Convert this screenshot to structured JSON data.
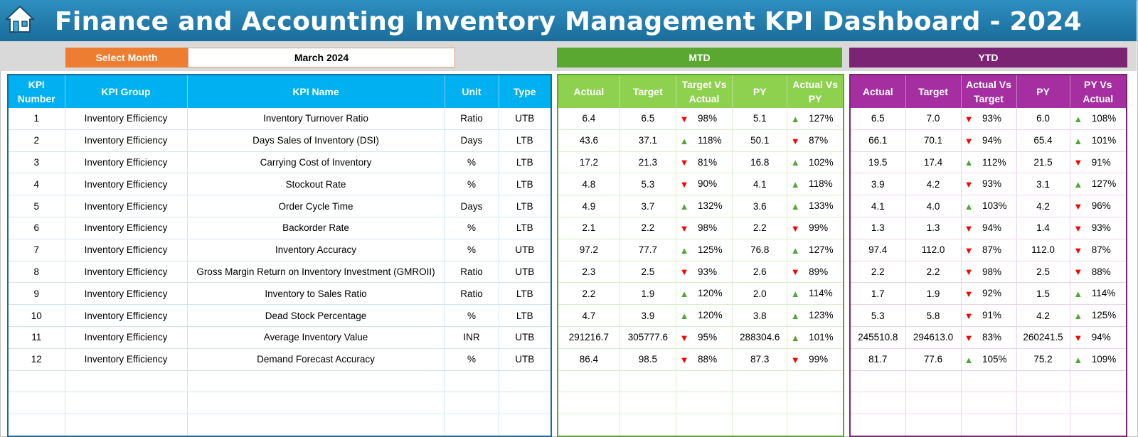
{
  "title": "Finance and Accounting Inventory Management KPI Dashboard - 2024",
  "selector": {
    "label": "Select Month",
    "value": "March 2024"
  },
  "sections": {
    "mtd": "MTD",
    "ytd": "YTD"
  },
  "main_headers": [
    "KPI Number",
    "KPI Group",
    "KPI Name",
    "Unit",
    "Type"
  ],
  "mtd_headers": [
    "Actual",
    "Target",
    "Target Vs Actual",
    "PY",
    "Actual Vs PY"
  ],
  "ytd_headers": [
    "Actual",
    "Target",
    "Actual Vs Target",
    "PY",
    "PY Vs Actual"
  ],
  "colors": {
    "up": "#52a539",
    "down": "#ff0000",
    "mtd": "#5aa832",
    "ytd": "#7b2473",
    "header": "#00b0f0"
  },
  "rows": [
    {
      "num": "1",
      "group": "Inventory Efficiency",
      "name": "Inventory Turnover Ratio",
      "unit": "Ratio",
      "type": "UTB",
      "mtd": {
        "actual": "6.4",
        "target": "6.5",
        "tva": "98%",
        "tva_dir": "down",
        "py": "5.1",
        "avp": "127%",
        "avp_dir": "up"
      },
      "ytd": {
        "actual": "6.5",
        "target": "7.0",
        "avt": "93%",
        "avt_dir": "down",
        "py": "6.0",
        "pva": "108%",
        "pva_dir": "up"
      }
    },
    {
      "num": "2",
      "group": "Inventory Efficiency",
      "name": "Days Sales of Inventory (DSI)",
      "unit": "Days",
      "type": "LTB",
      "mtd": {
        "actual": "43.6",
        "target": "37.1",
        "tva": "118%",
        "tva_dir": "up",
        "py": "50.1",
        "avp": "87%",
        "avp_dir": "down"
      },
      "ytd": {
        "actual": "66.1",
        "target": "70.1",
        "avt": "94%",
        "avt_dir": "down",
        "py": "65.4",
        "pva": "101%",
        "pva_dir": "up"
      }
    },
    {
      "num": "3",
      "group": "Inventory Efficiency",
      "name": "Carrying Cost of Inventory",
      "unit": "%",
      "type": "LTB",
      "mtd": {
        "actual": "17.2",
        "target": "21.3",
        "tva": "81%",
        "tva_dir": "down",
        "py": "16.8",
        "avp": "102%",
        "avp_dir": "up"
      },
      "ytd": {
        "actual": "19.5",
        "target": "17.4",
        "avt": "112%",
        "avt_dir": "up",
        "py": "21.5",
        "pva": "91%",
        "pva_dir": "down"
      }
    },
    {
      "num": "4",
      "group": "Inventory Efficiency",
      "name": "Stockout Rate",
      "unit": "%",
      "type": "LTB",
      "mtd": {
        "actual": "4.8",
        "target": "5.3",
        "tva": "90%",
        "tva_dir": "down",
        "py": "4.1",
        "avp": "118%",
        "avp_dir": "up"
      },
      "ytd": {
        "actual": "3.9",
        "target": "4.2",
        "avt": "93%",
        "avt_dir": "down",
        "py": "3.1",
        "pva": "127%",
        "pva_dir": "up"
      }
    },
    {
      "num": "5",
      "group": "Inventory Efficiency",
      "name": "Order Cycle Time",
      "unit": "Days",
      "type": "LTB",
      "mtd": {
        "actual": "4.9",
        "target": "3.7",
        "tva": "132%",
        "tva_dir": "up",
        "py": "3.6",
        "avp": "133%",
        "avp_dir": "up"
      },
      "ytd": {
        "actual": "4.1",
        "target": "4.0",
        "avt": "103%",
        "avt_dir": "up",
        "py": "4.2",
        "pva": "96%",
        "pva_dir": "down"
      }
    },
    {
      "num": "6",
      "group": "Inventory Efficiency",
      "name": "Backorder Rate",
      "unit": "%",
      "type": "LTB",
      "mtd": {
        "actual": "2.1",
        "target": "2.2",
        "tva": "98%",
        "tva_dir": "down",
        "py": "2.2",
        "avp": "99%",
        "avp_dir": "down"
      },
      "ytd": {
        "actual": "1.3",
        "target": "1.3",
        "avt": "94%",
        "avt_dir": "down",
        "py": "1.4",
        "pva": "93%",
        "pva_dir": "down"
      }
    },
    {
      "num": "7",
      "group": "Inventory Efficiency",
      "name": "Inventory Accuracy",
      "unit": "%",
      "type": "UTB",
      "mtd": {
        "actual": "97.2",
        "target": "77.7",
        "tva": "125%",
        "tva_dir": "up",
        "py": "76.8",
        "avp": "127%",
        "avp_dir": "up"
      },
      "ytd": {
        "actual": "97.4",
        "target": "112.0",
        "avt": "87%",
        "avt_dir": "down",
        "py": "112.0",
        "pva": "87%",
        "pva_dir": "down"
      }
    },
    {
      "num": "8",
      "group": "Inventory Efficiency",
      "name": "Gross Margin Return on Inventory Investment (GMROII)",
      "unit": "Ratio",
      "type": "UTB",
      "mtd": {
        "actual": "2.3",
        "target": "2.5",
        "tva": "93%",
        "tva_dir": "down",
        "py": "2.6",
        "avp": "89%",
        "avp_dir": "down"
      },
      "ytd": {
        "actual": "2.2",
        "target": "2.2",
        "avt": "98%",
        "avt_dir": "down",
        "py": "2.5",
        "pva": "88%",
        "pva_dir": "down"
      }
    },
    {
      "num": "9",
      "group": "Inventory Efficiency",
      "name": "Inventory to Sales Ratio",
      "unit": "Ratio",
      "type": "LTB",
      "mtd": {
        "actual": "2.2",
        "target": "1.9",
        "tva": "120%",
        "tva_dir": "up",
        "py": "2.0",
        "avp": "114%",
        "avp_dir": "up"
      },
      "ytd": {
        "actual": "1.7",
        "target": "1.9",
        "avt": "92%",
        "avt_dir": "down",
        "py": "1.5",
        "pva": "114%",
        "pva_dir": "up"
      }
    },
    {
      "num": "10",
      "group": "Inventory Efficiency",
      "name": "Dead Stock Percentage",
      "unit": "%",
      "type": "LTB",
      "mtd": {
        "actual": "4.7",
        "target": "3.9",
        "tva": "120%",
        "tva_dir": "up",
        "py": "3.8",
        "avp": "123%",
        "avp_dir": "up"
      },
      "ytd": {
        "actual": "5.3",
        "target": "5.8",
        "avt": "91%",
        "avt_dir": "down",
        "py": "4.2",
        "pva": "125%",
        "pva_dir": "up"
      }
    },
    {
      "num": "11",
      "group": "Inventory Efficiency",
      "name": "Average Inventory Value",
      "unit": "INR",
      "type": "UTB",
      "mtd": {
        "actual": "291216.7",
        "target": "305777.6",
        "tva": "95%",
        "tva_dir": "down",
        "py": "288304.6",
        "avp": "101%",
        "avp_dir": "up"
      },
      "ytd": {
        "actual": "245510.8",
        "target": "294613.0",
        "avt": "83%",
        "avt_dir": "down",
        "py": "260241.5",
        "pva": "94%",
        "pva_dir": "down"
      }
    },
    {
      "num": "12",
      "group": "Inventory Efficiency",
      "name": "Demand Forecast Accuracy",
      "unit": "%",
      "type": "UTB",
      "mtd": {
        "actual": "86.4",
        "target": "98.5",
        "tva": "88%",
        "tva_dir": "down",
        "py": "87.3",
        "avp": "99%",
        "avp_dir": "down"
      },
      "ytd": {
        "actual": "81.7",
        "target": "77.6",
        "avt": "105%",
        "avt_dir": "up",
        "py": "75.2",
        "pva": "109%",
        "pva_dir": "up"
      }
    }
  ],
  "empty_rows": 3
}
